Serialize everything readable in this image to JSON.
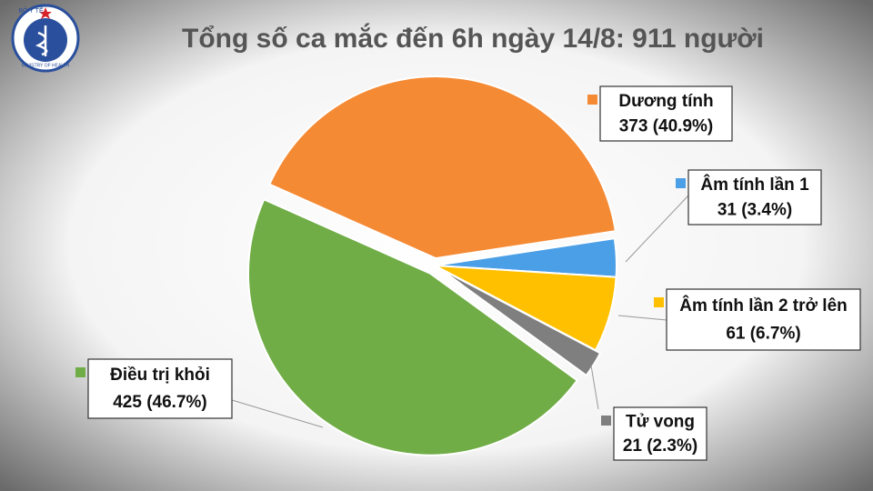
{
  "logo": {
    "top": "BỘ Y TẾ",
    "bottom": "MINISTRY OF HEALTH"
  },
  "chart_data": {
    "type": "pie",
    "title": "Tổng số ca mắc đến 6h ngày 14/8: 911 người",
    "categories": [
      "Dương tính",
      "Âm tính lần 1",
      "Âm tính lần 2 trở lên",
      "Tử vong",
      "Điều trị khỏi"
    ],
    "values": [
      373,
      31,
      61,
      21,
      425
    ],
    "value_labels": [
      "373 (40.9%)",
      "31 (3.4%)",
      "61 (6.7%)",
      "21 (2.3%)",
      "425 (46.7%)"
    ],
    "colors": [
      "#f58a35",
      "#4b9fe6",
      "#ffc000",
      "#7f7f7f",
      "#70ad47"
    ]
  }
}
